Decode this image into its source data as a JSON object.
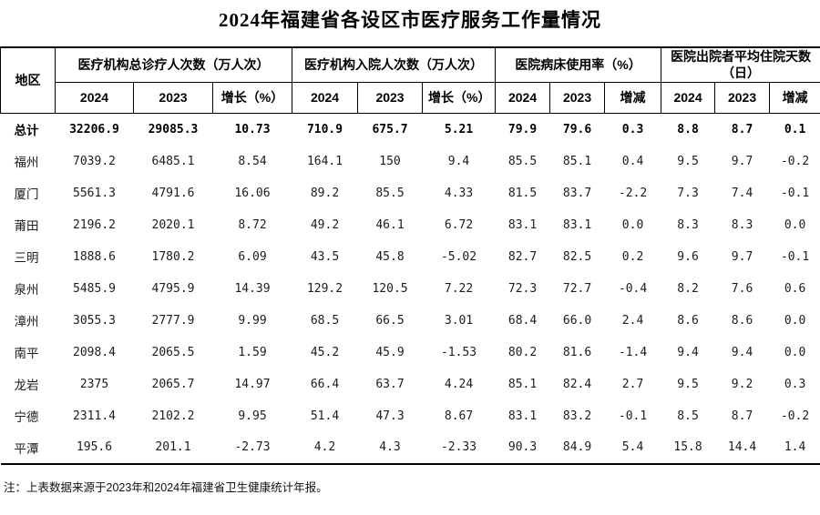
{
  "title": "2024年福建省各设区市医疗服务工作量情况",
  "table": {
    "region_header": "地区",
    "groups": [
      {
        "label": "医疗机构总诊疗人次数（万人次）",
        "sub": [
          "2024",
          "2023",
          "增长（%）"
        ]
      },
      {
        "label": "医疗机构入院人次数（万人次）",
        "sub": [
          "2024",
          "2023",
          "增长（%）"
        ]
      },
      {
        "label": "医院病床使用率（%）",
        "sub": [
          "2024",
          "2023",
          "增减"
        ]
      },
      {
        "label": "医院出院者平均住院天数（日）",
        "sub": [
          "2024",
          "2023",
          "增减"
        ]
      }
    ],
    "rows": [
      {
        "region": "总计",
        "bold": true,
        "values": [
          "32206.9",
          "29085.3",
          "10.73",
          "710.9",
          "675.7",
          "5.21",
          "79.9",
          "79.6",
          "0.3",
          "8.8",
          "8.7",
          "0.1"
        ]
      },
      {
        "region": "福州",
        "bold": false,
        "values": [
          "7039.2",
          "6485.1",
          "8.54",
          "164.1",
          "150",
          "9.4",
          "85.5",
          "85.1",
          "0.4",
          "9.5",
          "9.7",
          "-0.2"
        ]
      },
      {
        "region": "厦门",
        "bold": false,
        "values": [
          "5561.3",
          "4791.6",
          "16.06",
          "89.2",
          "85.5",
          "4.33",
          "81.5",
          "83.7",
          "-2.2",
          "7.3",
          "7.4",
          "-0.1"
        ]
      },
      {
        "region": "莆田",
        "bold": false,
        "values": [
          "2196.2",
          "2020.1",
          "8.72",
          "49.2",
          "46.1",
          "6.72",
          "83.1",
          "83.1",
          "0.0",
          "8.3",
          "8.3",
          "0.0"
        ]
      },
      {
        "region": "三明",
        "bold": false,
        "values": [
          "1888.6",
          "1780.2",
          "6.09",
          "43.5",
          "45.8",
          "-5.02",
          "82.7",
          "82.5",
          "0.2",
          "9.6",
          "9.7",
          "-0.1"
        ]
      },
      {
        "region": "泉州",
        "bold": false,
        "values": [
          "5485.9",
          "4795.9",
          "14.39",
          "129.2",
          "120.5",
          "7.22",
          "72.3",
          "72.7",
          "-0.4",
          "8.2",
          "7.6",
          "0.6"
        ]
      },
      {
        "region": "漳州",
        "bold": false,
        "values": [
          "3055.3",
          "2777.9",
          "9.99",
          "68.5",
          "66.5",
          "3.01",
          "68.4",
          "66.0",
          "2.4",
          "8.6",
          "8.6",
          "0.0"
        ]
      },
      {
        "region": "南平",
        "bold": false,
        "values": [
          "2098.4",
          "2065.5",
          "1.59",
          "45.2",
          "45.9",
          "-1.53",
          "80.2",
          "81.6",
          "-1.4",
          "9.4",
          "9.4",
          "0.0"
        ]
      },
      {
        "region": "龙岩",
        "bold": false,
        "values": [
          "2375",
          "2065.7",
          "14.97",
          "66.4",
          "63.7",
          "4.24",
          "85.1",
          "82.4",
          "2.7",
          "9.5",
          "9.2",
          "0.3"
        ]
      },
      {
        "region": "宁德",
        "bold": false,
        "values": [
          "2311.4",
          "2102.2",
          "9.95",
          "51.4",
          "47.3",
          "8.67",
          "83.1",
          "83.2",
          "-0.1",
          "8.5",
          "8.7",
          "-0.2"
        ]
      },
      {
        "region": "平潭",
        "bold": false,
        "values": [
          "195.6",
          "201.1",
          "-2.73",
          "4.2",
          "4.3",
          "-2.33",
          "90.3",
          "84.9",
          "5.4",
          "15.8",
          "14.4",
          "1.4"
        ]
      }
    ]
  },
  "footnote": "注：上表数据来源于2023年和2024年福建省卫生健康统计年报。",
  "colors": {
    "background": "#ffffff",
    "text": "#000000",
    "data_text": "#1c1c1c",
    "border": "#000000"
  }
}
